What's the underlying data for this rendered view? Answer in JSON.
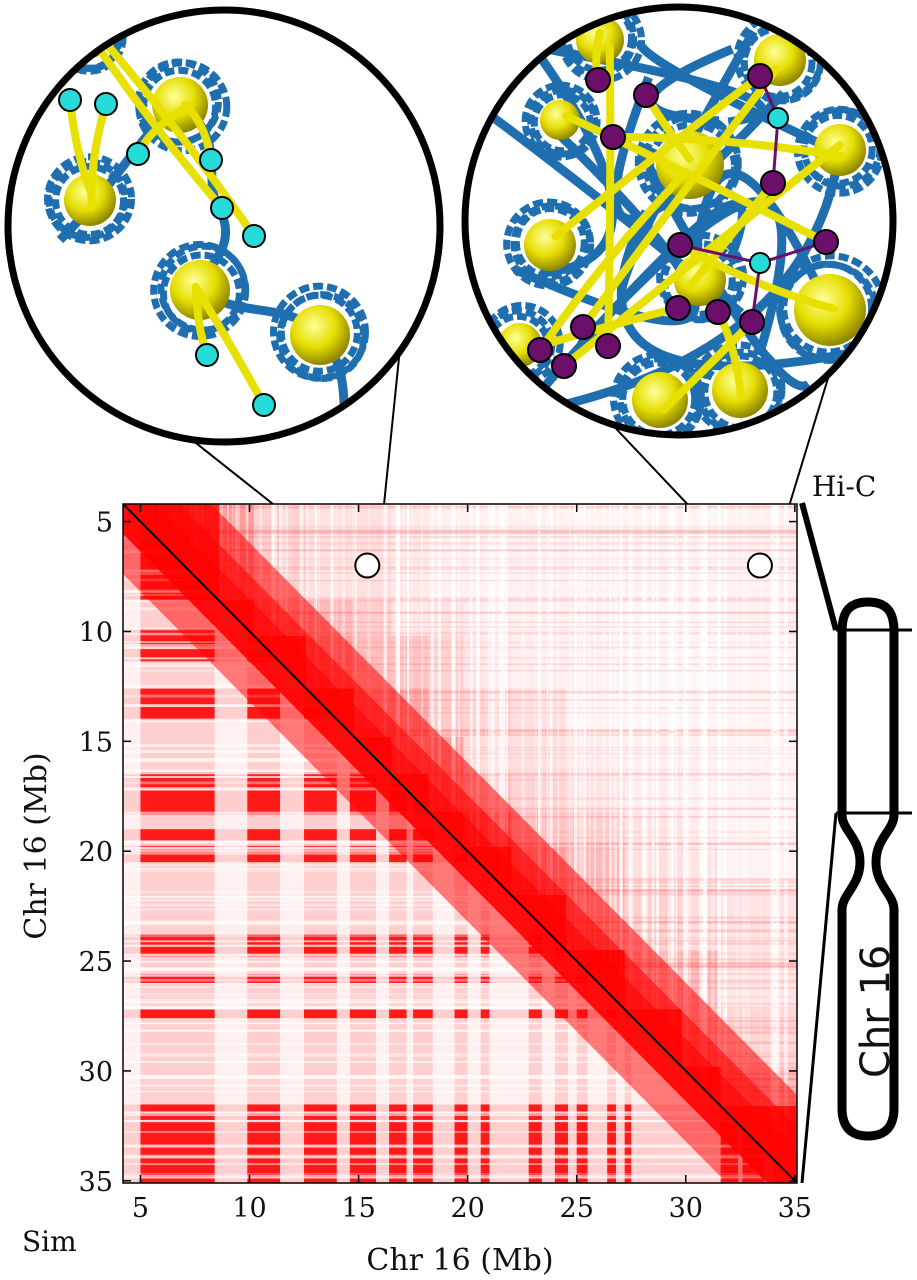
{
  "chart_data": {
    "type": "heatmap",
    "upper_triangle_label": "Hi-C",
    "lower_triangle_label": "Sim",
    "xlabel": "Chr 16 (Mb)",
    "ylabel": "Chr 16 (Mb)",
    "xlim": [
      4.2,
      35.1
    ],
    "ylim": [
      4.2,
      35.1
    ],
    "x_ticks": [
      5,
      10,
      15,
      20,
      25,
      30,
      35
    ],
    "y_ticks": [
      5,
      10,
      15,
      20,
      25,
      30,
      35
    ],
    "x_tick_labels": [
      "5",
      "10",
      "15",
      "20",
      "25",
      "30",
      "35"
    ],
    "y_tick_labels": [
      "5",
      "10",
      "15",
      "20",
      "25",
      "30",
      "35"
    ],
    "colormap": [
      "#ffffff",
      "#ff0000"
    ],
    "highlighted_points": [
      {
        "x": 15.4,
        "y": 7.0,
        "inset": "left"
      },
      {
        "x": 33.4,
        "y": 7.0,
        "inset": "right"
      }
    ],
    "zoomed_region_mb": [
      10,
      18.2
    ]
  },
  "chromosome": {
    "label": "Chr 16"
  },
  "insets": {
    "left": {
      "bead_color": "#25dcd8",
      "nucleosome_color": "#e8e000",
      "dna_color": "#1f6fb0"
    },
    "right": {
      "bead_color": "#6b0f6b",
      "active_bead_color": "#25dcd8",
      "nucleosome_color": "#e8e000",
      "dna_color": "#1f6fb0"
    }
  },
  "colors": {
    "contact": "#ff0000",
    "background": "#ffffff",
    "outline": "#000000"
  }
}
